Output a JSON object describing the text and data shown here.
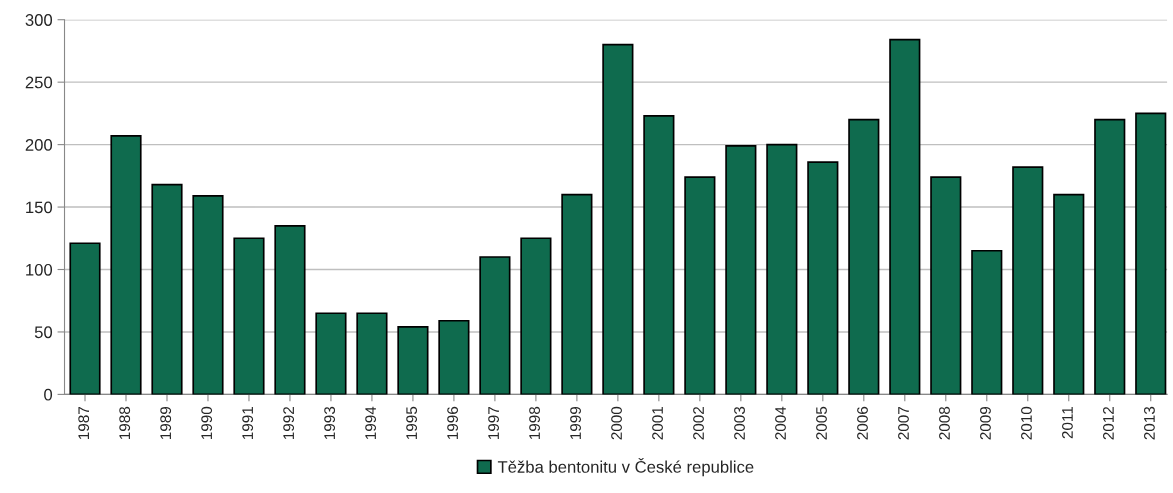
{
  "chart_data": {
    "type": "bar",
    "categories": [
      "1987",
      "1988",
      "1989",
      "1990",
      "1991",
      "1992",
      "1993",
      "1994",
      "1995",
      "1996",
      "1997",
      "1998",
      "1999",
      "2000",
      "2001",
      "2002",
      "2003",
      "2004",
      "2005",
      "2006",
      "2007",
      "2008",
      "2009",
      "2010",
      "2011",
      "2012",
      "2013"
    ],
    "series": [
      {
        "name": "Těžba bentonitu v České republice",
        "color": "#0f6b4e",
        "values": [
          121,
          207,
          168,
          159,
          125,
          135,
          65,
          65,
          54,
          59,
          110,
          125,
          160,
          280,
          223,
          174,
          199,
          200,
          186,
          220,
          284,
          174,
          115,
          182,
          160,
          220,
          225
        ]
      }
    ],
    "ylim": [
      0,
      300
    ],
    "yticks": [
      0,
      50,
      100,
      150,
      200,
      250,
      300
    ],
    "grid": "y",
    "legend": "bottom"
  }
}
